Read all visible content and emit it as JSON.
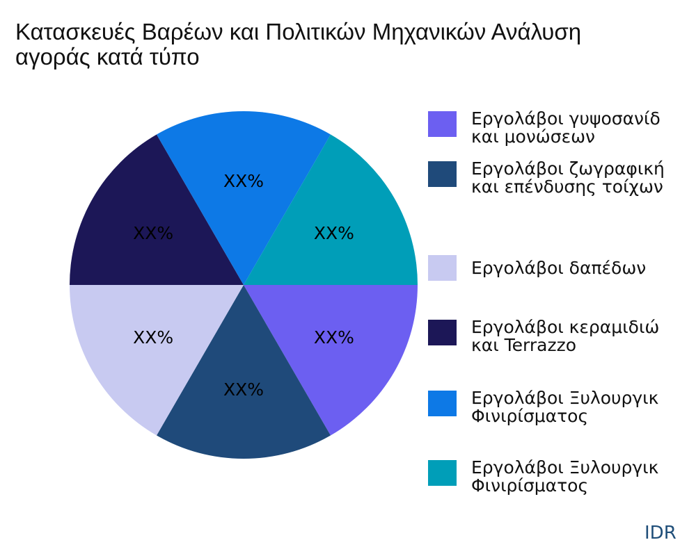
{
  "chart_data": {
    "type": "pie",
    "title_lines": [
      "Κατασκευές Βαρέων και Πολιτικών Μηχανικών Ανάλυση",
      "αγοράς κατά τύπο"
    ],
    "slices": [
      {
        "label": "Εργολάβοι γυψοσανίδ\nκαι μονώσεων",
        "value": 1,
        "data_label": "XX%",
        "color": "#6c5ff1"
      },
      {
        "label": "Εργολάβοι ζωγραφική\nκαι επένδυσης τοίχων",
        "value": 1,
        "data_label": "XX%",
        "color": "#1f4a7a"
      },
      {
        "label": "Εργολάβοι δαπέδων",
        "value": 1,
        "data_label": "XX%",
        "color": "#c8caf1"
      },
      {
        "label": "Εργολάβοι κεραμιδιώ\nκαι Terrazzo",
        "value": 1,
        "data_label": "XX%",
        "color": "#1c1757"
      },
      {
        "label": "Εργολάβοι Ξυλουργικ\nΦινιρίσματος",
        "value": 1,
        "data_label": "XX%",
        "color": "#0d79e6"
      },
      {
        "label": "Εργολάβοι Ξυλουργικ\nΦινιρίσματος",
        "value": 1,
        "data_label": "XX%",
        "color": "#009eb8"
      }
    ],
    "start_angle_deg": 0,
    "direction": "clockwise",
    "legend_position": "right"
  },
  "brand": "IDR"
}
